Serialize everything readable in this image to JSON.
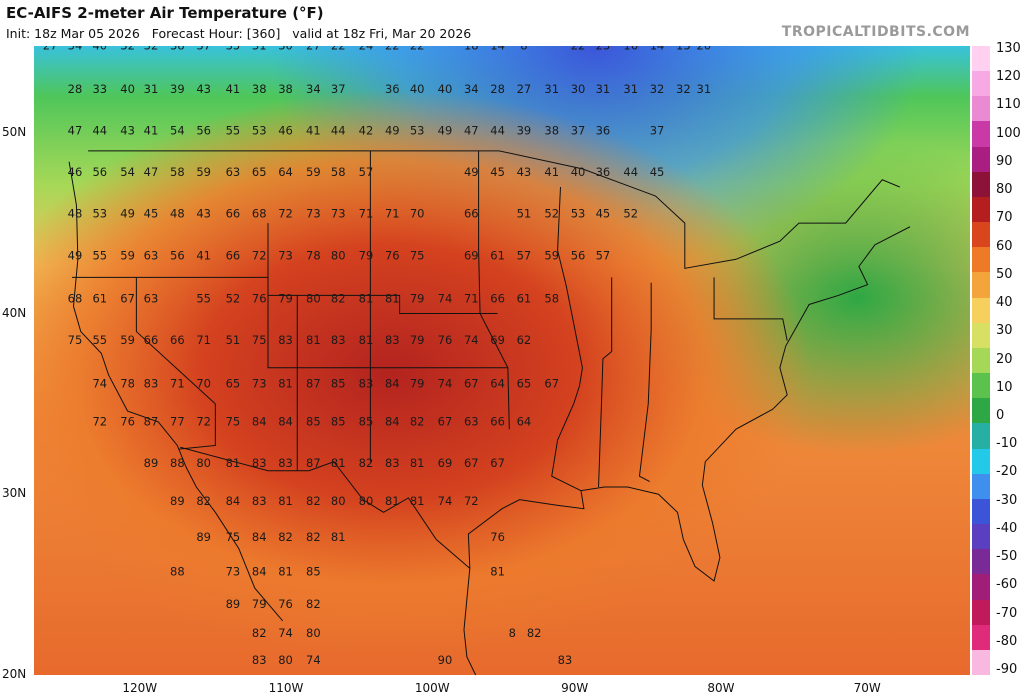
{
  "header": {
    "title": "EC-AIFS 2-meter Air Temperature (°F)",
    "init": "Init: 18z Mar 05 2026",
    "forecast_hour": "Forecast Hour: [360]",
    "valid": "valid at 18z Fri, Mar 20 2026",
    "brand": "TROPICALTIDBITS.COM"
  },
  "axes": {
    "lat_labels": [
      "50N",
      "40N",
      "30N",
      "20N"
    ],
    "lon_labels": [
      "120W",
      "110W",
      "100W",
      "90W",
      "80W",
      "70W"
    ]
  },
  "colorbar": {
    "ticks": [
      "130",
      "120",
      "110",
      "100",
      "90",
      "80",
      "70",
      "60",
      "50",
      "40",
      "30",
      "20",
      "10",
      "0",
      "-10",
      "-20",
      "-30",
      "-40",
      "-50",
      "-60",
      "-70",
      "-80",
      "-90"
    ],
    "colors": [
      "#ffd0f0",
      "#f7a9e4",
      "#e98ad2",
      "#c93aa6",
      "#aa1e82",
      "#8c1238",
      "#b51e1e",
      "#d9461e",
      "#ee7a26",
      "#f3a43b",
      "#f6d05c",
      "#d8e063",
      "#a6d857",
      "#5cc24e",
      "#2ea844",
      "#26b0a4",
      "#22c9e8",
      "#3f8fef",
      "#3c55d8",
      "#5a3fc0",
      "#7a2a96",
      "#a01e78",
      "#c01a5a",
      "#e02a7a",
      "#f8b8e0"
    ]
  },
  "stations": [
    {
      "v": "27",
      "lon": -125.9,
      "lat": 54.6
    },
    {
      "v": "34",
      "lon": -124.2,
      "lat": 54.6
    },
    {
      "v": "40",
      "lon": -122.5,
      "lat": 54.6
    },
    {
      "v": "32",
      "lon": -120.6,
      "lat": 54.6
    },
    {
      "v": "32",
      "lon": -119.0,
      "lat": 54.6
    },
    {
      "v": "38",
      "lon": -117.2,
      "lat": 54.6
    },
    {
      "v": "37",
      "lon": -115.4,
      "lat": 54.6
    },
    {
      "v": "35",
      "lon": -113.4,
      "lat": 54.6
    },
    {
      "v": "31",
      "lon": -111.6,
      "lat": 54.6
    },
    {
      "v": "30",
      "lon": -109.8,
      "lat": 54.6
    },
    {
      "v": "27",
      "lon": -107.9,
      "lat": 54.6
    },
    {
      "v": "22",
      "lon": -106.2,
      "lat": 54.6
    },
    {
      "v": "24",
      "lon": -104.3,
      "lat": 54.6
    },
    {
      "v": "22",
      "lon": -102.5,
      "lat": 54.6
    },
    {
      "v": "22",
      "lon": -100.8,
      "lat": 54.6
    },
    {
      "v": "18",
      "lon": -97.1,
      "lat": 54.6
    },
    {
      "v": "14",
      "lon": -95.3,
      "lat": 54.6
    },
    {
      "v": "8",
      "lon": -93.5,
      "lat": 54.6
    },
    {
      "v": "22",
      "lon": -89.8,
      "lat": 54.6
    },
    {
      "v": "23",
      "lon": -88.1,
      "lat": 54.6
    },
    {
      "v": "16",
      "lon": -86.2,
      "lat": 54.6
    },
    {
      "v": "14",
      "lon": -84.4,
      "lat": 54.6
    },
    {
      "v": "15",
      "lon": -82.6,
      "lat": 54.6
    },
    {
      "v": "20",
      "lon": -81.2,
      "lat": 54.6
    },
    {
      "v": "28",
      "lon": -124.2,
      "lat": 52.2
    },
    {
      "v": "33",
      "lon": -122.5,
      "lat": 52.2
    },
    {
      "v": "40",
      "lon": -120.6,
      "lat": 52.2
    },
    {
      "v": "31",
      "lon": -119.0,
      "lat": 52.2
    },
    {
      "v": "39",
      "lon": -117.2,
      "lat": 52.2
    },
    {
      "v": "43",
      "lon": -115.4,
      "lat": 52.2
    },
    {
      "v": "41",
      "lon": -113.4,
      "lat": 52.2
    },
    {
      "v": "38",
      "lon": -111.6,
      "lat": 52.2
    },
    {
      "v": "38",
      "lon": -109.8,
      "lat": 52.2
    },
    {
      "v": "34",
      "lon": -107.9,
      "lat": 52.2
    },
    {
      "v": "37",
      "lon": -106.2,
      "lat": 52.2
    },
    {
      "v": "36",
      "lon": -102.5,
      "lat": 52.2
    },
    {
      "v": "40",
      "lon": -100.8,
      "lat": 52.2
    },
    {
      "v": "40",
      "lon": -98.9,
      "lat": 52.2
    },
    {
      "v": "34",
      "lon": -97.1,
      "lat": 52.2
    },
    {
      "v": "28",
      "lon": -95.3,
      "lat": 52.2
    },
    {
      "v": "27",
      "lon": -93.5,
      "lat": 52.2
    },
    {
      "v": "31",
      "lon": -91.6,
      "lat": 52.2
    },
    {
      "v": "30",
      "lon": -89.8,
      "lat": 52.2
    },
    {
      "v": "31",
      "lon": -88.1,
      "lat": 52.2
    },
    {
      "v": "31",
      "lon": -86.2,
      "lat": 52.2
    },
    {
      "v": "32",
      "lon": -84.4,
      "lat": 52.2
    },
    {
      "v": "32",
      "lon": -82.6,
      "lat": 52.2
    },
    {
      "v": "31",
      "lon": -81.2,
      "lat": 52.2
    },
    {
      "v": "47",
      "lon": -124.2,
      "lat": 49.9
    },
    {
      "v": "44",
      "lon": -122.5,
      "lat": 49.9
    },
    {
      "v": "43",
      "lon": -120.6,
      "lat": 49.9
    },
    {
      "v": "41",
      "lon": -119.0,
      "lat": 49.9
    },
    {
      "v": "54",
      "lon": -117.2,
      "lat": 49.9
    },
    {
      "v": "56",
      "lon": -115.4,
      "lat": 49.9
    },
    {
      "v": "55",
      "lon": -113.4,
      "lat": 49.9
    },
    {
      "v": "53",
      "lon": -111.6,
      "lat": 49.9
    },
    {
      "v": "46",
      "lon": -109.8,
      "lat": 49.9
    },
    {
      "v": "41",
      "lon": -107.9,
      "lat": 49.9
    },
    {
      "v": "44",
      "lon": -106.2,
      "lat": 49.9
    },
    {
      "v": "42",
      "lon": -104.3,
      "lat": 49.9
    },
    {
      "v": "49",
      "lon": -102.5,
      "lat": 49.9
    },
    {
      "v": "53",
      "lon": -100.8,
      "lat": 49.9
    },
    {
      "v": "49",
      "lon": -98.9,
      "lat": 49.9
    },
    {
      "v": "47",
      "lon": -97.1,
      "lat": 49.9
    },
    {
      "v": "44",
      "lon": -95.3,
      "lat": 49.9
    },
    {
      "v": "39",
      "lon": -93.5,
      "lat": 49.9
    },
    {
      "v": "38",
      "lon": -91.6,
      "lat": 49.9
    },
    {
      "v": "37",
      "lon": -89.8,
      "lat": 49.9
    },
    {
      "v": "36",
      "lon": -88.1,
      "lat": 49.9
    },
    {
      "v": "37",
      "lon": -84.4,
      "lat": 49.9
    },
    {
      "v": "46",
      "lon": -124.2,
      "lat": 47.6
    },
    {
      "v": "56",
      "lon": -122.5,
      "lat": 47.6
    },
    {
      "v": "54",
      "lon": -120.6,
      "lat": 47.6
    },
    {
      "v": "47",
      "lon": -119.0,
      "lat": 47.6
    },
    {
      "v": "58",
      "lon": -117.2,
      "lat": 47.6
    },
    {
      "v": "59",
      "lon": -115.4,
      "lat": 47.6
    },
    {
      "v": "63",
      "lon": -113.4,
      "lat": 47.6
    },
    {
      "v": "65",
      "lon": -111.6,
      "lat": 47.6
    },
    {
      "v": "64",
      "lon": -109.8,
      "lat": 47.6
    },
    {
      "v": "59",
      "lon": -107.9,
      "lat": 47.6
    },
    {
      "v": "58",
      "lon": -106.2,
      "lat": 47.6
    },
    {
      "v": "57",
      "lon": -104.3,
      "lat": 47.6
    },
    {
      "v": "49",
      "lon": -97.1,
      "lat": 47.6
    },
    {
      "v": "45",
      "lon": -95.3,
      "lat": 47.6
    },
    {
      "v": "43",
      "lon": -93.5,
      "lat": 47.6
    },
    {
      "v": "41",
      "lon": -91.6,
      "lat": 47.6
    },
    {
      "v": "40",
      "lon": -89.8,
      "lat": 47.6
    },
    {
      "v": "36",
      "lon": -88.1,
      "lat": 47.6
    },
    {
      "v": "44",
      "lon": -86.2,
      "lat": 47.6
    },
    {
      "v": "45",
      "lon": -84.4,
      "lat": 47.6
    },
    {
      "v": "48",
      "lon": -124.2,
      "lat": 45.3
    },
    {
      "v": "53",
      "lon": -122.5,
      "lat": 45.3
    },
    {
      "v": "49",
      "lon": -120.6,
      "lat": 45.3
    },
    {
      "v": "45",
      "lon": -119.0,
      "lat": 45.3
    },
    {
      "v": "48",
      "lon": -117.2,
      "lat": 45.3
    },
    {
      "v": "43",
      "lon": -115.4,
      "lat": 45.3
    },
    {
      "v": "66",
      "lon": -113.4,
      "lat": 45.3
    },
    {
      "v": "68",
      "lon": -111.6,
      "lat": 45.3
    },
    {
      "v": "72",
      "lon": -109.8,
      "lat": 45.3
    },
    {
      "v": "73",
      "lon": -107.9,
      "lat": 45.3
    },
    {
      "v": "73",
      "lon": -106.2,
      "lat": 45.3
    },
    {
      "v": "71",
      "lon": -104.3,
      "lat": 45.3
    },
    {
      "v": "71",
      "lon": -102.5,
      "lat": 45.3
    },
    {
      "v": "70",
      "lon": -100.8,
      "lat": 45.3
    },
    {
      "v": "66",
      "lon": -97.1,
      "lat": 45.3
    },
    {
      "v": "51",
      "lon": -93.5,
      "lat": 45.3
    },
    {
      "v": "52",
      "lon": -91.6,
      "lat": 45.3
    },
    {
      "v": "53",
      "lon": -89.8,
      "lat": 45.3
    },
    {
      "v": "45",
      "lon": -88.1,
      "lat": 45.3
    },
    {
      "v": "52",
      "lon": -86.2,
      "lat": 45.3
    },
    {
      "v": "49",
      "lon": -124.2,
      "lat": 43.0
    },
    {
      "v": "55",
      "lon": -122.5,
      "lat": 43.0
    },
    {
      "v": "59",
      "lon": -120.6,
      "lat": 43.0
    },
    {
      "v": "63",
      "lon": -119.0,
      "lat": 43.0
    },
    {
      "v": "56",
      "lon": -117.2,
      "lat": 43.0
    },
    {
      "v": "41",
      "lon": -115.4,
      "lat": 43.0
    },
    {
      "v": "66",
      "lon": -113.4,
      "lat": 43.0
    },
    {
      "v": "72",
      "lon": -111.6,
      "lat": 43.0
    },
    {
      "v": "73",
      "lon": -109.8,
      "lat": 43.0
    },
    {
      "v": "78",
      "lon": -107.9,
      "lat": 43.0
    },
    {
      "v": "80",
      "lon": -106.2,
      "lat": 43.0
    },
    {
      "v": "79",
      "lon": -104.3,
      "lat": 43.0
    },
    {
      "v": "76",
      "lon": -102.5,
      "lat": 43.0
    },
    {
      "v": "75",
      "lon": -100.8,
      "lat": 43.0
    },
    {
      "v": "69",
      "lon": -97.1,
      "lat": 43.0
    },
    {
      "v": "61",
      "lon": -95.3,
      "lat": 43.0
    },
    {
      "v": "57",
      "lon": -93.5,
      "lat": 43.0
    },
    {
      "v": "59",
      "lon": -91.6,
      "lat": 43.0
    },
    {
      "v": "56",
      "lon": -89.8,
      "lat": 43.0
    },
    {
      "v": "57",
      "lon": -88.1,
      "lat": 43.0
    },
    {
      "v": "68",
      "lon": -124.2,
      "lat": 40.6
    },
    {
      "v": "61",
      "lon": -122.5,
      "lat": 40.6
    },
    {
      "v": "67",
      "lon": -120.6,
      "lat": 40.6
    },
    {
      "v": "63",
      "lon": -119.0,
      "lat": 40.6
    },
    {
      "v": "55",
      "lon": -115.4,
      "lat": 40.6
    },
    {
      "v": "52",
      "lon": -113.4,
      "lat": 40.6
    },
    {
      "v": "76",
      "lon": -111.6,
      "lat": 40.6
    },
    {
      "v": "79",
      "lon": -109.8,
      "lat": 40.6
    },
    {
      "v": "80",
      "lon": -107.9,
      "lat": 40.6
    },
    {
      "v": "82",
      "lon": -106.2,
      "lat": 40.6
    },
    {
      "v": "81",
      "lon": -104.3,
      "lat": 40.6
    },
    {
      "v": "81",
      "lon": -102.5,
      "lat": 40.6
    },
    {
      "v": "79",
      "lon": -100.8,
      "lat": 40.6
    },
    {
      "v": "74",
      "lon": -98.9,
      "lat": 40.6
    },
    {
      "v": "71",
      "lon": -97.1,
      "lat": 40.6
    },
    {
      "v": "66",
      "lon": -95.3,
      "lat": 40.6
    },
    {
      "v": "61",
      "lon": -93.5,
      "lat": 40.6
    },
    {
      "v": "58",
      "lon": -91.6,
      "lat": 40.6
    },
    {
      "v": "75",
      "lon": -124.2,
      "lat": 38.3
    },
    {
      "v": "55",
      "lon": -122.5,
      "lat": 38.3
    },
    {
      "v": "59",
      "lon": -120.6,
      "lat": 38.3
    },
    {
      "v": "66",
      "lon": -119.0,
      "lat": 38.3
    },
    {
      "v": "66",
      "lon": -117.2,
      "lat": 38.3
    },
    {
      "v": "71",
      "lon": -115.4,
      "lat": 38.3
    },
    {
      "v": "51",
      "lon": -113.4,
      "lat": 38.3
    },
    {
      "v": "75",
      "lon": -111.6,
      "lat": 38.3
    },
    {
      "v": "83",
      "lon": -109.8,
      "lat": 38.3
    },
    {
      "v": "81",
      "lon": -107.9,
      "lat": 38.3
    },
    {
      "v": "83",
      "lon": -106.2,
      "lat": 38.3
    },
    {
      "v": "81",
      "lon": -104.3,
      "lat": 38.3
    },
    {
      "v": "83",
      "lon": -102.5,
      "lat": 38.3
    },
    {
      "v": "79",
      "lon": -100.8,
      "lat": 38.3
    },
    {
      "v": "76",
      "lon": -98.9,
      "lat": 38.3
    },
    {
      "v": "74",
      "lon": -97.1,
      "lat": 38.3
    },
    {
      "v": "69",
      "lon": -95.3,
      "lat": 38.3
    },
    {
      "v": "62",
      "lon": -93.5,
      "lat": 38.3
    },
    {
      "v": "74",
      "lon": -122.5,
      "lat": 35.9
    },
    {
      "v": "78",
      "lon": -120.6,
      "lat": 35.9
    },
    {
      "v": "83",
      "lon": -119.0,
      "lat": 35.9
    },
    {
      "v": "71",
      "lon": -117.2,
      "lat": 35.9
    },
    {
      "v": "70",
      "lon": -115.4,
      "lat": 35.9
    },
    {
      "v": "65",
      "lon": -113.4,
      "lat": 35.9
    },
    {
      "v": "73",
      "lon": -111.6,
      "lat": 35.9
    },
    {
      "v": "81",
      "lon": -109.8,
      "lat": 35.9
    },
    {
      "v": "87",
      "lon": -107.9,
      "lat": 35.9
    },
    {
      "v": "85",
      "lon": -106.2,
      "lat": 35.9
    },
    {
      "v": "83",
      "lon": -104.3,
      "lat": 35.9
    },
    {
      "v": "84",
      "lon": -102.5,
      "lat": 35.9
    },
    {
      "v": "79",
      "lon": -100.8,
      "lat": 35.9
    },
    {
      "v": "74",
      "lon": -98.9,
      "lat": 35.9
    },
    {
      "v": "67",
      "lon": -97.1,
      "lat": 35.9
    },
    {
      "v": "64",
      "lon": -95.3,
      "lat": 35.9
    },
    {
      "v": "65",
      "lon": -93.5,
      "lat": 35.9
    },
    {
      "v": "67",
      "lon": -91.6,
      "lat": 35.9
    },
    {
      "v": "72",
      "lon": -122.5,
      "lat": 33.8
    },
    {
      "v": "76",
      "lon": -120.6,
      "lat": 33.8
    },
    {
      "v": "87",
      "lon": -119.0,
      "lat": 33.8
    },
    {
      "v": "77",
      "lon": -117.2,
      "lat": 33.8
    },
    {
      "v": "72",
      "lon": -115.4,
      "lat": 33.8
    },
    {
      "v": "75",
      "lon": -113.4,
      "lat": 33.8
    },
    {
      "v": "84",
      "lon": -111.6,
      "lat": 33.8
    },
    {
      "v": "84",
      "lon": -109.8,
      "lat": 33.8
    },
    {
      "v": "85",
      "lon": -107.9,
      "lat": 33.8
    },
    {
      "v": "85",
      "lon": -106.2,
      "lat": 33.8
    },
    {
      "v": "85",
      "lon": -104.3,
      "lat": 33.8
    },
    {
      "v": "84",
      "lon": -102.5,
      "lat": 33.8
    },
    {
      "v": "82",
      "lon": -100.8,
      "lat": 33.8
    },
    {
      "v": "67",
      "lon": -98.9,
      "lat": 33.8
    },
    {
      "v": "63",
      "lon": -97.1,
      "lat": 33.8
    },
    {
      "v": "66",
      "lon": -95.3,
      "lat": 33.8
    },
    {
      "v": "64",
      "lon": -93.5,
      "lat": 33.8
    },
    {
      "v": "89",
      "lon": -119.0,
      "lat": 31.5
    },
    {
      "v": "88",
      "lon": -117.2,
      "lat": 31.5
    },
    {
      "v": "80",
      "lon": -115.4,
      "lat": 31.5
    },
    {
      "v": "81",
      "lon": -113.4,
      "lat": 31.5
    },
    {
      "v": "83",
      "lon": -111.6,
      "lat": 31.5
    },
    {
      "v": "83",
      "lon": -109.8,
      "lat": 31.5
    },
    {
      "v": "87",
      "lon": -107.9,
      "lat": 31.5
    },
    {
      "v": "81",
      "lon": -106.2,
      "lat": 31.5
    },
    {
      "v": "82",
      "lon": -104.3,
      "lat": 31.5
    },
    {
      "v": "83",
      "lon": -102.5,
      "lat": 31.5
    },
    {
      "v": "81",
      "lon": -100.8,
      "lat": 31.5
    },
    {
      "v": "69",
      "lon": -98.9,
      "lat": 31.5
    },
    {
      "v": "67",
      "lon": -97.1,
      "lat": 31.5
    },
    {
      "v": "67",
      "lon": -95.3,
      "lat": 31.5
    },
    {
      "v": "89",
      "lon": -117.2,
      "lat": 29.4
    },
    {
      "v": "82",
      "lon": -115.4,
      "lat": 29.4
    },
    {
      "v": "84",
      "lon": -113.4,
      "lat": 29.4
    },
    {
      "v": "83",
      "lon": -111.6,
      "lat": 29.4
    },
    {
      "v": "81",
      "lon": -109.8,
      "lat": 29.4
    },
    {
      "v": "82",
      "lon": -107.9,
      "lat": 29.4
    },
    {
      "v": "80",
      "lon": -106.2,
      "lat": 29.4
    },
    {
      "v": "80",
      "lon": -104.3,
      "lat": 29.4
    },
    {
      "v": "81",
      "lon": -102.5,
      "lat": 29.4
    },
    {
      "v": "81",
      "lon": -100.8,
      "lat": 29.4
    },
    {
      "v": "74",
      "lon": -98.9,
      "lat": 29.4
    },
    {
      "v": "72",
      "lon": -97.1,
      "lat": 29.4
    },
    {
      "v": "89",
      "lon": -115.4,
      "lat": 27.4
    },
    {
      "v": "75",
      "lon": -113.4,
      "lat": 27.4
    },
    {
      "v": "84",
      "lon": -111.6,
      "lat": 27.4
    },
    {
      "v": "82",
      "lon": -109.8,
      "lat": 27.4
    },
    {
      "v": "82",
      "lon": -107.9,
      "lat": 27.4
    },
    {
      "v": "81",
      "lon": -106.2,
      "lat": 27.4
    },
    {
      "v": "76",
      "lon": -95.3,
      "lat": 27.4
    },
    {
      "v": "88",
      "lon": -117.2,
      "lat": 25.5
    },
    {
      "v": "73",
      "lon": -113.4,
      "lat": 25.5
    },
    {
      "v": "84",
      "lon": -111.6,
      "lat": 25.5
    },
    {
      "v": "81",
      "lon": -109.8,
      "lat": 25.5
    },
    {
      "v": "85",
      "lon": -107.9,
      "lat": 25.5
    },
    {
      "v": "81",
      "lon": -95.3,
      "lat": 25.5
    },
    {
      "v": "89",
      "lon": -113.4,
      "lat": 23.7
    },
    {
      "v": "79",
      "lon": -111.6,
      "lat": 23.7
    },
    {
      "v": "76",
      "lon": -109.8,
      "lat": 23.7
    },
    {
      "v": "82",
      "lon": -107.9,
      "lat": 23.7
    },
    {
      "v": "82",
      "lon": -111.6,
      "lat": 22.1
    },
    {
      "v": "74",
      "lon": -109.8,
      "lat": 22.1
    },
    {
      "v": "80",
      "lon": -107.9,
      "lat": 22.1
    },
    {
      "v": "8",
      "lon": -94.3,
      "lat": 22.1
    },
    {
      "v": "82",
      "lon": -92.8,
      "lat": 22.1
    },
    {
      "v": "83",
      "lon": -111.6,
      "lat": 20.6
    },
    {
      "v": "80",
      "lon": -109.8,
      "lat": 20.6
    },
    {
      "v": "74",
      "lon": -107.9,
      "lat": 20.6
    },
    {
      "v": "90",
      "lon": -98.9,
      "lat": 20.6
    },
    {
      "v": "83",
      "lon": -90.7,
      "lat": 20.6
    }
  ]
}
